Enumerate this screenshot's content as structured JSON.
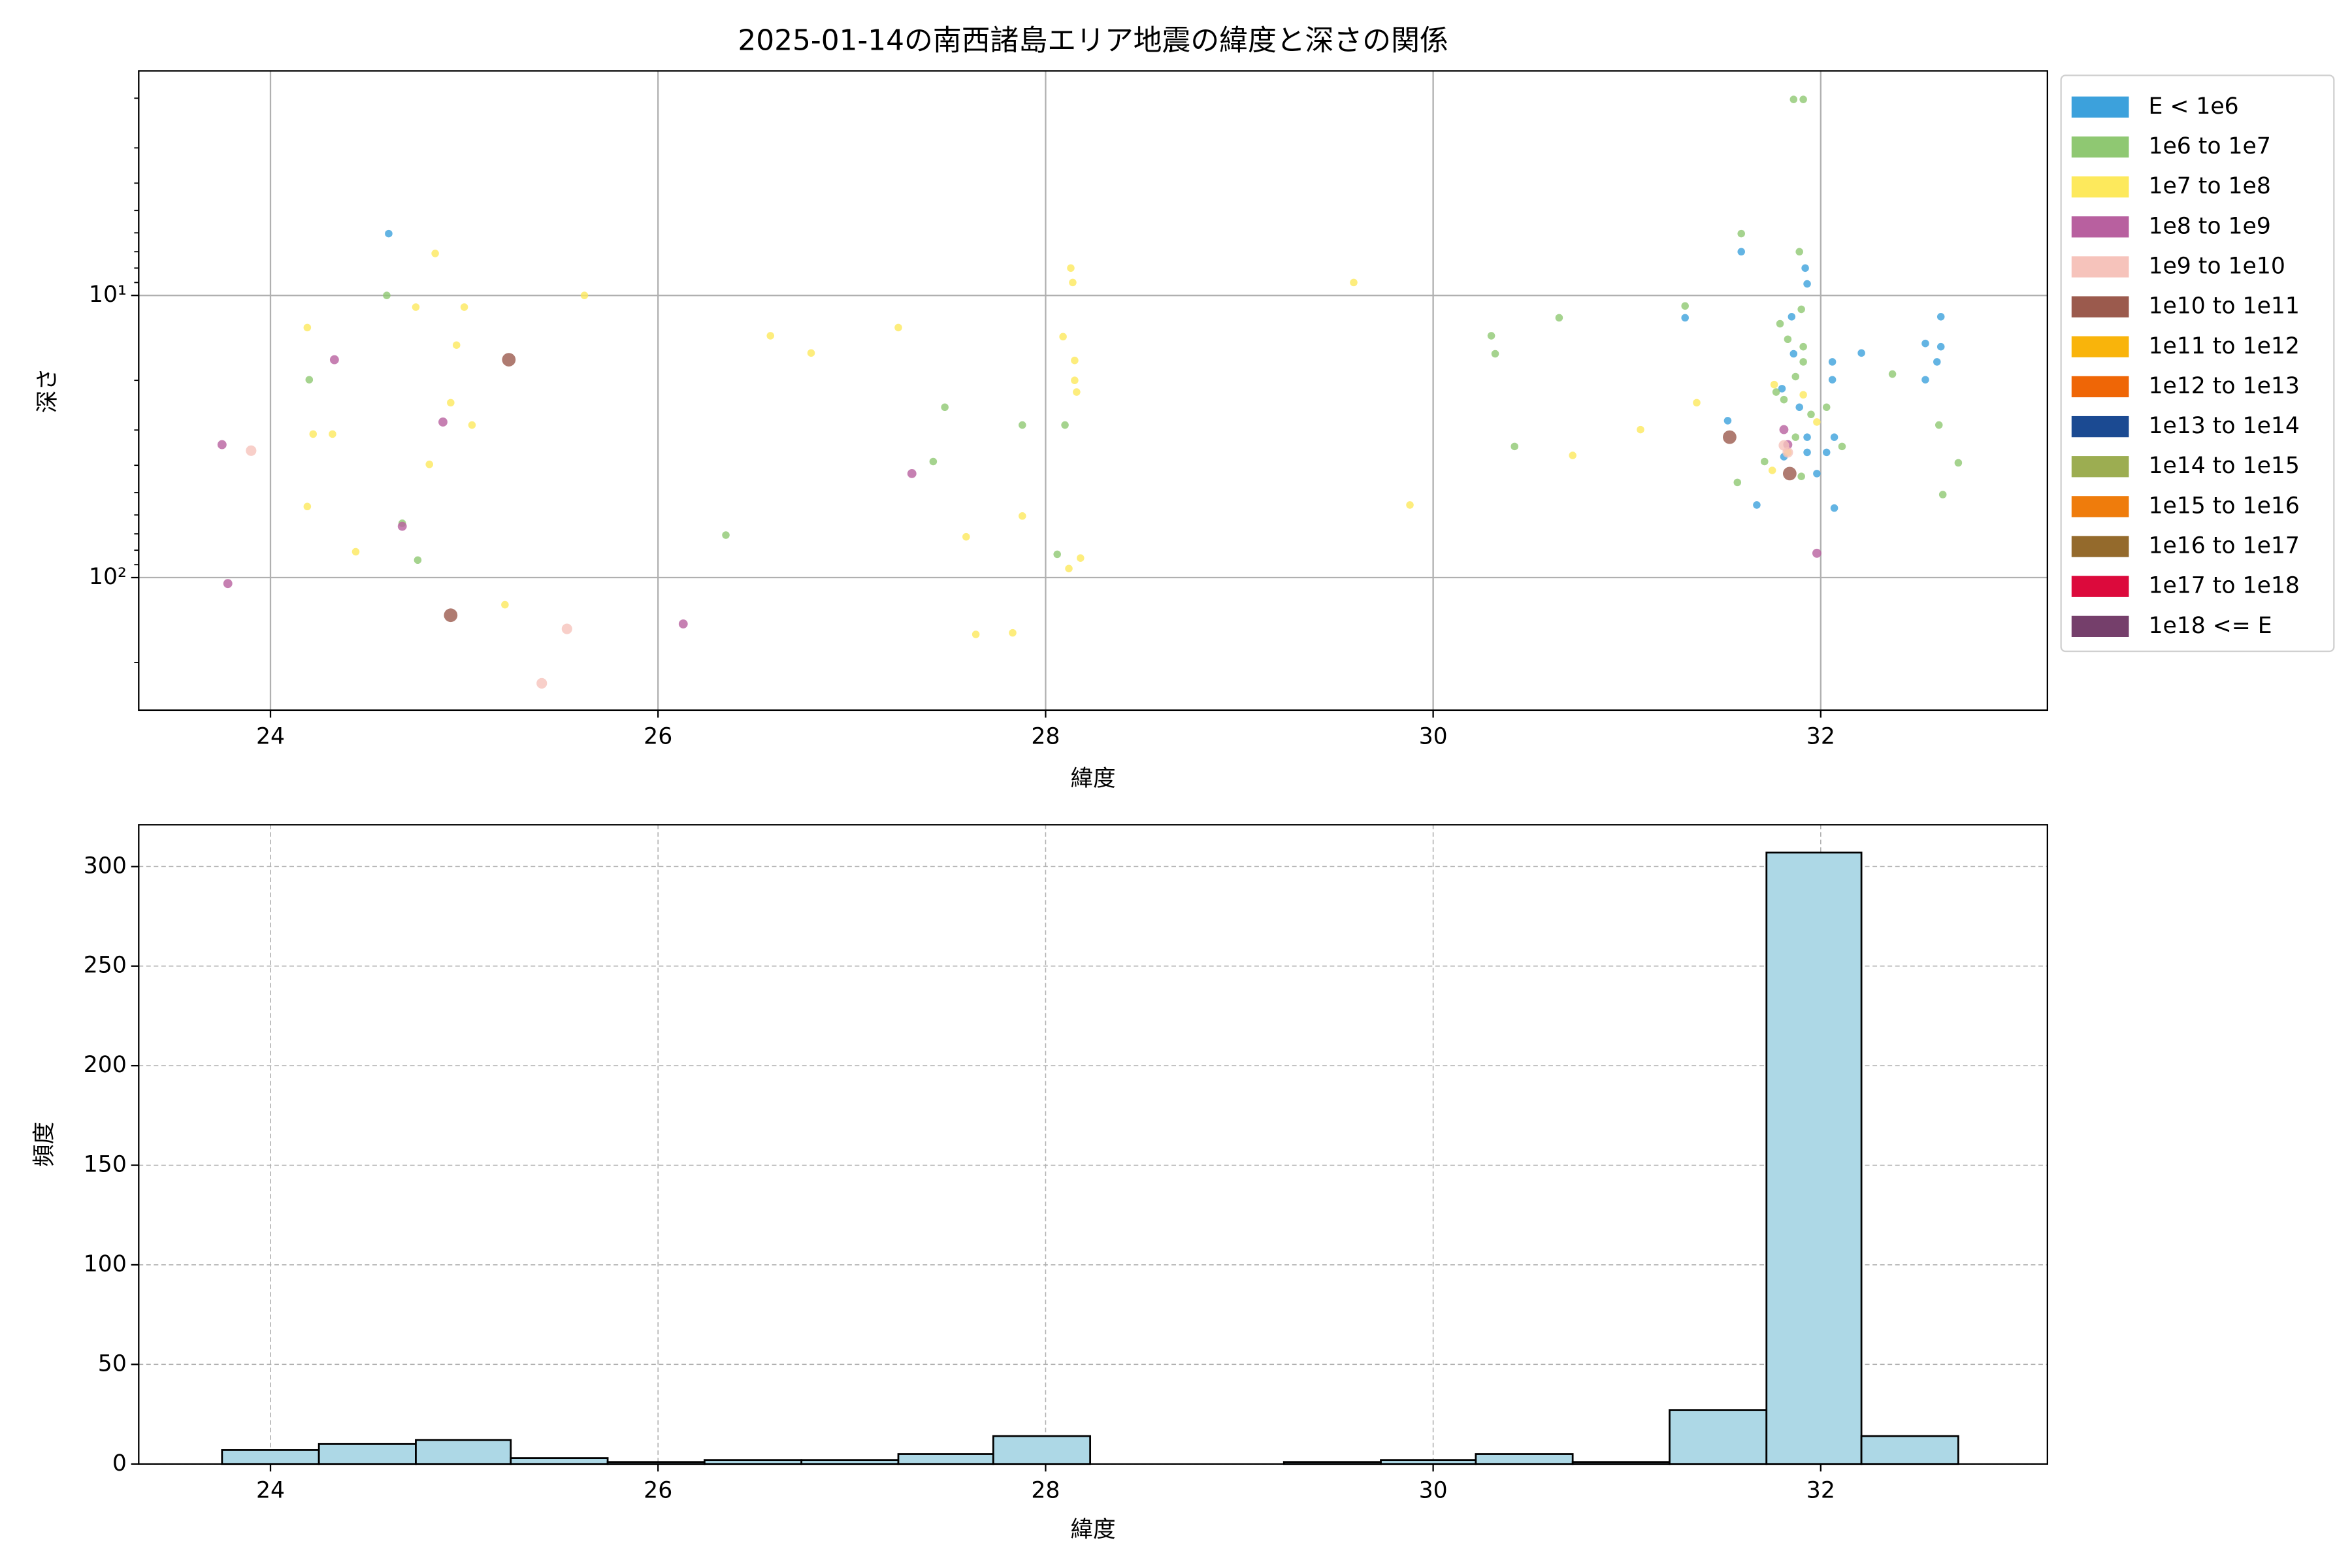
{
  "chart_data": [
    {
      "type": "scatter",
      "title": "2025-01-14の南西諸島エリア地震の緯度と深さの関係",
      "x_label": "緯度",
      "y_label": "深さ",
      "xlim": [
        23.32,
        33.17
      ],
      "xticks": [
        24,
        26,
        28,
        30,
        32
      ],
      "ylim": [
        1.6,
        295
      ],
      "y_inverted": true,
      "log_y": true,
      "yticks": [
        {
          "value": 10,
          "label": "10¹"
        },
        {
          "value": 100,
          "label": "10²"
        }
      ],
      "yticks_minor": [
        2,
        3,
        4,
        5,
        6,
        7,
        8,
        9,
        20,
        30,
        40,
        50,
        60,
        70,
        80,
        90,
        200
      ],
      "grid": true,
      "legend": "outside right",
      "series": [
        {
          "name": "E < 1e6",
          "color": "#3ca1dc",
          "x": [
            24.61,
            31.3,
            31.59,
            31.52,
            31.67,
            31.92,
            31.93,
            32.06,
            32.21,
            32.06,
            32.54,
            32.54,
            32.62,
            32.62,
            32.6,
            32.07,
            32.03,
            31.98,
            31.8,
            31.89,
            31.93,
            31.85,
            31.93,
            31.86,
            31.81,
            32.07
          ],
          "values": [
            6.04,
            12.0,
            7.0,
            27.8,
            55.3,
            8.0,
            9.1,
            17.2,
            16.0,
            19.9,
            14.8,
            19.9,
            11.9,
            15.2,
            17.2,
            56.7,
            36.0,
            42.8,
            21.4,
            24.9,
            31.8,
            11.9,
            36.0,
            16.1,
            37.3,
            31.8
          ]
        },
        {
          "name": "1e6 to 1e7",
          "color": "#8fc872",
          "x": [
            31.86,
            31.91,
            31.59,
            31.89,
            24.6,
            24.2,
            24.68,
            24.76,
            30.3,
            30.32,
            30.65,
            30.42,
            27.48,
            27.42,
            26.35,
            27.88,
            28.1,
            28.06,
            31.3,
            32.37,
            32.61,
            32.71,
            32.63,
            31.57,
            31.71,
            31.9,
            31.79,
            31.83,
            31.91,
            31.87,
            31.81,
            31.95,
            31.87,
            31.9,
            32.11,
            32.03,
            31.77,
            31.91
          ],
          "values": [
            2.02,
            2.02,
            6.04,
            7.0,
            10.0,
            19.9,
            64.2,
            86.7,
            13.9,
            16.1,
            12.0,
            34.3,
            24.9,
            38.8,
            70.7,
            28.8,
            28.8,
            82.7,
            10.9,
            19.0,
            28.8,
            39.2,
            50.8,
            46.0,
            38.8,
            43.8,
            12.6,
            14.3,
            17.2,
            19.4,
            23.4,
            26.4,
            31.8,
            11.2,
            34.3,
            24.9,
            22.0,
            15.2
          ]
        },
        {
          "name": "1e7 to 1e8",
          "color": "#fde95c",
          "x": [
            24.85,
            24.19,
            24.75,
            25.0,
            24.96,
            24.93,
            24.22,
            24.32,
            25.04,
            24.82,
            24.19,
            24.44,
            25.62,
            25.21,
            26.58,
            26.79,
            27.24,
            28.13,
            28.14,
            28.09,
            28.15,
            28.15,
            28.16,
            27.88,
            27.59,
            28.12,
            28.18,
            27.64,
            27.83,
            29.59,
            29.88,
            30.72,
            31.07,
            31.36,
            31.76,
            31.91,
            31.83,
            31.98,
            31.75
          ],
          "values": [
            7.1,
            13.0,
            11.0,
            11.0,
            15.0,
            24.0,
            31.0,
            31.0,
            28.8,
            39.7,
            56.0,
            81.0,
            10.0,
            124.8,
            13.9,
            16.0,
            13.0,
            8.0,
            9.0,
            14.0,
            17.0,
            20.0,
            22.0,
            60.5,
            71.7,
            92.9,
            85.3,
            159.0,
            157.0,
            9.0,
            55.3,
            36.9,
            29.9,
            24.0,
            20.7,
            22.5,
            36.0,
            28.1,
            41.7
          ]
        },
        {
          "name": "1e8 to 1e9",
          "color": "#b8609f",
          "x": [
            24.33,
            24.89,
            23.75,
            24.68,
            23.78,
            26.13,
            27.31,
            31.98,
            31.81,
            31.83
          ],
          "values": [
            16.9,
            28.1,
            33.8,
            65.8,
            105,
            146,
            42.8,
            82,
            29.9,
            33.8
          ]
        },
        {
          "name": "1e9 to 1e10",
          "color": "#f6c3bb",
          "x": [
            23.9,
            25.4,
            25.53,
            31.83,
            31.81
          ],
          "values": [
            35.5,
            237,
            152,
            36.0,
            34.0
          ]
        },
        {
          "name": "1e10 to 1e11",
          "color": "#9b5a4d",
          "x": [
            25.23,
            24.93,
            31.53,
            31.84
          ],
          "values": [
            16.9,
            136,
            31.8,
            42.8
          ]
        },
        {
          "name": "1e11 to 1e12",
          "color": "#f9b40b",
          "x": [],
          "values": []
        },
        {
          "name": "1e12 to 1e13",
          "color": "#ef6606",
          "x": [],
          "values": []
        },
        {
          "name": "1e13 to 1e14",
          "color": "#1b4a92",
          "x": [],
          "values": []
        },
        {
          "name": "1e14 to 1e15",
          "color": "#9cad51",
          "x": [],
          "values": []
        },
        {
          "name": "1e15 to 1e16",
          "color": "#ef7c0c",
          "x": [],
          "values": []
        },
        {
          "name": "1e16 to 1e17",
          "color": "#946a2c",
          "x": [],
          "values": []
        },
        {
          "name": "1e17 to 1e18",
          "color": "#dc0a3c",
          "x": [],
          "values": []
        },
        {
          "name": "1e18 <= E",
          "color": "#753f6b",
          "x": [],
          "values": []
        }
      ]
    },
    {
      "type": "histogram",
      "x_label": "緯度",
      "y_label": "頻度",
      "xlim": [
        23.32,
        33.17
      ],
      "xticks": [
        24,
        26,
        28,
        30,
        32
      ],
      "ylim": [
        0,
        321
      ],
      "yticks": [
        0,
        50,
        100,
        150,
        200,
        250,
        300
      ],
      "grid": true,
      "grid_style": "dashed",
      "color": "#add8e6",
      "bins": [
        23.75,
        24.25,
        24.75,
        25.24,
        25.74,
        26.24,
        26.74,
        27.24,
        27.73,
        28.23,
        28.73,
        29.23,
        29.73,
        30.22,
        30.72,
        31.22,
        31.72,
        32.21,
        32.71
      ],
      "values": [
        7,
        10,
        12,
        3,
        1,
        2,
        2,
        5,
        14,
        0,
        0,
        1,
        2,
        5,
        1,
        27,
        307,
        14
      ]
    }
  ]
}
